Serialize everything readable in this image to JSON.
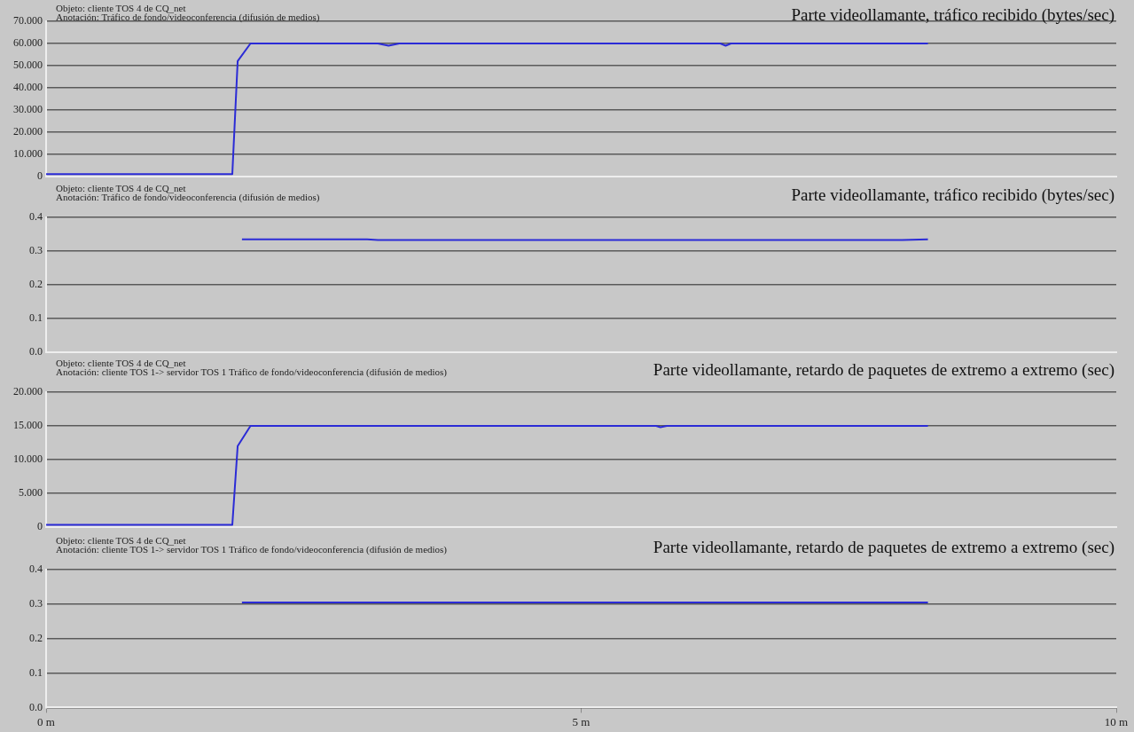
{
  "chart_data": [
    {
      "type": "line",
      "title": "Parte videollamante, tráfico recibido (bytes/sec)",
      "subtitle": "Objeto: cliente TOS 4 de CQ_net",
      "annotations": [
        "Anotación: Tráfico de fondo/videoconferencia (difusión de medios)"
      ],
      "series": [
        {
          "color": "#2b2bd6",
          "x": [
            0,
            1.74,
            1.79,
            1.91,
            3.1,
            3.2,
            3.3,
            6.3,
            6.35,
            6.4,
            8.24
          ],
          "values": [
            1,
            1,
            52,
            60,
            60,
            59,
            60,
            60,
            59,
            60,
            60
          ]
        }
      ],
      "xlim": [
        0,
        10
      ],
      "ylim": [
        0,
        70
      ],
      "yticks": [
        0,
        {
          "value": 10,
          "label": "10.000"
        },
        {
          "value": 20,
          "label": "20.000"
        },
        {
          "value": 30,
          "label": "30.000"
        },
        {
          "value": 40,
          "label": "40.000"
        },
        {
          "value": 50,
          "label": "50.000"
        },
        {
          "value": 60,
          "label": "60.000"
        },
        {
          "value": 70,
          "label": "70.000"
        }
      ],
      "grid": "y",
      "tick_labels": "y",
      "marker": "none",
      "line_style": "solid"
    },
    {
      "type": "line",
      "title": "Parte videollamante, tráfico recibido (bytes/sec)",
      "subtitle": "Objeto: cliente TOS 4 de CQ_net",
      "annotations": [
        "Anotación: Tráfico de fondo/videoconferencia (difusión de medios)"
      ],
      "series": [
        {
          "color": "#2b2bd6",
          "x": [
            1.83,
            3.0,
            3.1,
            8.0,
            8.24
          ],
          "values": [
            0.335,
            0.335,
            0.333,
            0.333,
            0.335
          ]
        }
      ],
      "xlim": [
        0,
        10
      ],
      "ylim": [
        0,
        0.4
      ],
      "yticks": [
        {
          "value": 0,
          "label": "0.0"
        },
        0.1,
        0.2,
        0.3,
        0.4
      ],
      "grid": "y",
      "tick_labels": "y",
      "marker": "none",
      "line_style": "solid"
    },
    {
      "type": "line",
      "title": "Parte videollamante, retardo de paquetes de extremo a extremo (sec)",
      "subtitle": "Objeto: cliente TOS 4 de CQ_net",
      "annotations": [
        "Anotación: cliente TOS 1-> servidor TOS 1 Tráfico de fondo/videoconferencia (difusión de medios)"
      ],
      "series": [
        {
          "color": "#2b2bd6",
          "x": [
            0,
            1.74,
            1.79,
            1.91,
            5.7,
            5.74,
            5.8,
            8.24
          ],
          "values": [
            0.3,
            0.3,
            12,
            15,
            15,
            14.8,
            15,
            15
          ]
        }
      ],
      "xlim": [
        0,
        10
      ],
      "ylim": [
        0,
        20
      ],
      "yticks": [
        0,
        {
          "value": 5,
          "label": "5.000"
        },
        {
          "value": 10,
          "label": "10.000"
        },
        {
          "value": 15,
          "label": "15.000"
        },
        {
          "value": 20,
          "label": "20.000"
        }
      ],
      "grid": "y",
      "tick_labels": "y",
      "marker": "none",
      "line_style": "solid"
    },
    {
      "type": "line",
      "title": "Parte videollamante, retardo de paquetes de extremo a extremo (sec)",
      "subtitle": "Objeto: cliente TOS 4 de CQ_net",
      "annotations": [
        "Anotación: cliente TOS 1-> servidor TOS 1 Tráfico de fondo/videoconferencia (difusión de medios)"
      ],
      "series": [
        {
          "color": "#2b2bd6",
          "x": [
            1.83,
            8.24
          ],
          "values": [
            0.305,
            0.305
          ]
        }
      ],
      "xlim": [
        0,
        10
      ],
      "xticks": [
        {
          "value": 0,
          "label": "0 m"
        },
        {
          "value": 5,
          "label": "5 m"
        },
        {
          "value": 10,
          "label": "10 m"
        }
      ],
      "ylim": [
        0,
        0.4
      ],
      "yticks": [
        {
          "value": 0,
          "label": "0.0"
        },
        0.1,
        0.2,
        0.3,
        0.4
      ],
      "grid": "y",
      "marker": "none",
      "line_style": "solid"
    }
  ]
}
